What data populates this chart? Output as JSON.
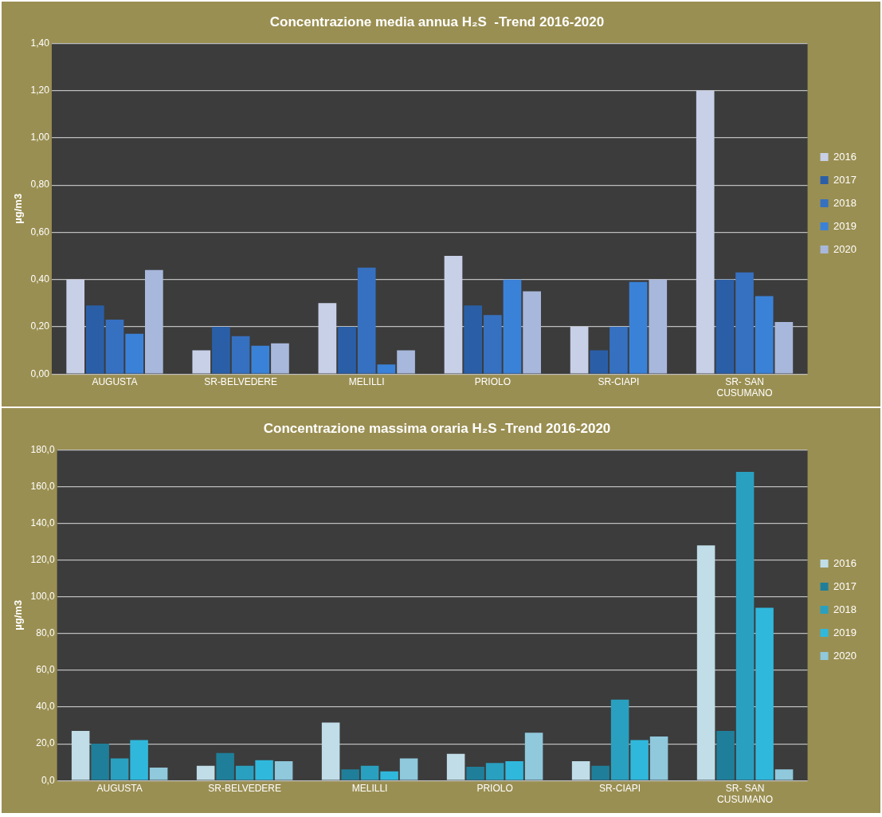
{
  "chart_data": [
    {
      "type": "bar",
      "title": "Concentrazione media annua H₂S  -Trend 2016-2020",
      "ylabel": "µg/m3",
      "categories": [
        "AUGUSTA",
        "SR-BELVEDERE",
        "MELILLI",
        "PRIOLO",
        "SR-CIAPI",
        "SR- SAN CUSUMANO"
      ],
      "series": [
        {
          "name": "2016",
          "color": "#c8d0e8",
          "values": [
            0.4,
            0.1,
            0.3,
            0.5,
            0.2,
            1.2
          ]
        },
        {
          "name": "2017",
          "color": "#2a5fa8",
          "values": [
            0.29,
            0.2,
            0.2,
            0.29,
            0.1,
            0.4
          ]
        },
        {
          "name": "2018",
          "color": "#3670c0",
          "values": [
            0.23,
            0.16,
            0.45,
            0.25,
            0.2,
            0.43
          ]
        },
        {
          "name": "2019",
          "color": "#3a82d8",
          "values": [
            0.17,
            0.12,
            0.04,
            0.4,
            0.39,
            0.33
          ]
        },
        {
          "name": "2020",
          "color": "#a8b8dc",
          "values": [
            0.44,
            0.13,
            0.1,
            0.35,
            0.4,
            0.22
          ]
        }
      ],
      "ylim": [
        0,
        1.4
      ],
      "yticks": [
        {
          "value": 0,
          "label": "0,00"
        },
        {
          "value": 0.2,
          "label": "0,20"
        },
        {
          "value": 0.4,
          "label": "0,40"
        },
        {
          "value": 0.6,
          "label": "0,60"
        },
        {
          "value": 0.8,
          "label": "0,80"
        },
        {
          "value": 1.0,
          "label": "1,00"
        },
        {
          "value": 1.2,
          "label": "1,20"
        },
        {
          "value": 1.4,
          "label": "1,40"
        }
      ],
      "grid": "y",
      "legend": "right"
    },
    {
      "type": "bar",
      "title": "Concentrazione massima oraria H₂S -Trend 2016-2020",
      "ylabel": "µg/m3",
      "categories": [
        "AUGUSTA",
        "SR-BELVEDERE",
        "MELILLI",
        "PRIOLO",
        "SR-CIAPI",
        "SR- SAN CUSUMANO"
      ],
      "series": [
        {
          "name": "2016",
          "color": "#c0dde8",
          "values": [
            27,
            8,
            31.5,
            14.5,
            10.5,
            128
          ]
        },
        {
          "name": "2017",
          "color": "#1f7f9a",
          "values": [
            20,
            15,
            6,
            7.5,
            8,
            27
          ]
        },
        {
          "name": "2018",
          "color": "#2aa0c0",
          "values": [
            12,
            8,
            8,
            9.5,
            44,
            168
          ]
        },
        {
          "name": "2019",
          "color": "#30b8dc",
          "values": [
            22,
            11,
            5,
            10.5,
            22,
            94
          ]
        },
        {
          "name": "2020",
          "color": "#90c8dc",
          "values": [
            7,
            10.5,
            12,
            26,
            24,
            6
          ]
        }
      ],
      "ylim": [
        0,
        180
      ],
      "yticks": [
        {
          "value": 0,
          "label": "0,0"
        },
        {
          "value": 20,
          "label": "20,0"
        },
        {
          "value": 40,
          "label": "40,0"
        },
        {
          "value": 60,
          "label": "60,0"
        },
        {
          "value": 80,
          "label": "80,0"
        },
        {
          "value": 100,
          "label": "100,0"
        },
        {
          "value": 120,
          "label": "120,0"
        },
        {
          "value": 140,
          "label": "140,0"
        },
        {
          "value": 160,
          "label": "160,0"
        },
        {
          "value": 180,
          "label": "180,0"
        }
      ],
      "grid": "y",
      "legend": "right"
    }
  ]
}
